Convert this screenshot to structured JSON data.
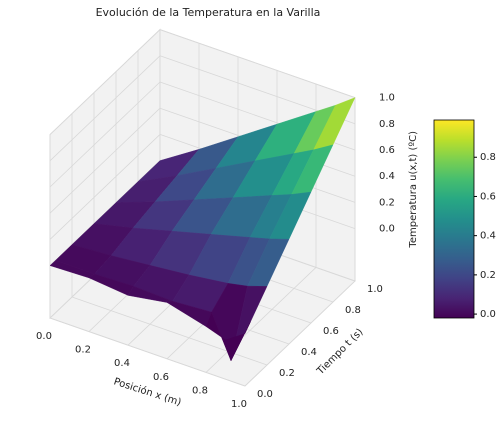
{
  "chart_data": {
    "type": "surface",
    "title": "Evolución de la Temperatura en la Varilla",
    "x_label": "Posición x (m)",
    "t_label": "Tiempo t (s)",
    "z_label": "Temperatura u(x,t) (ºC)",
    "x": [
      0,
      0.2,
      0.4,
      0.6,
      0.8,
      0.9,
      1.0
    ],
    "t": [
      0,
      0.05,
      0.2,
      0.4,
      0.6,
      0.8,
      1.0
    ],
    "z": [
      [
        0,
        0.01,
        -0.02,
        0.03,
        -0.05,
        -0.1,
        0
      ],
      [
        0,
        0,
        0.01,
        0,
        0.02,
        -0.3,
        0.05
      ],
      [
        0,
        0.02,
        0.05,
        0.08,
        0.12,
        0.15,
        0.2
      ],
      [
        0,
        0.07,
        0.15,
        0.23,
        0.31,
        0.35,
        0.4
      ],
      [
        0,
        0.11,
        0.23,
        0.35,
        0.47,
        0.53,
        0.6
      ],
      [
        0,
        0.15,
        0.31,
        0.47,
        0.63,
        0.71,
        0.8
      ],
      [
        0,
        0.19,
        0.39,
        0.59,
        0.79,
        0.89,
        1.0
      ]
    ],
    "xlim": [
      0,
      1.0
    ],
    "tlim": [
      0,
      1.0
    ],
    "zlim": [
      -0.4,
      1.0
    ],
    "xticks": [
      {
        "value": 0,
        "label": "0.0"
      },
      {
        "value": 0.2,
        "label": "0.2"
      },
      {
        "value": 0.4,
        "label": "0.4"
      },
      {
        "value": 0.6,
        "label": "0.6"
      },
      {
        "value": 0.8,
        "label": "0.8"
      },
      {
        "value": 1,
        "label": "1.0"
      }
    ],
    "tticks": [
      {
        "value": 0,
        "label": "0.0"
      },
      {
        "value": 0.2,
        "label": "0.2"
      },
      {
        "value": 0.4,
        "label": "0.4"
      },
      {
        "value": 0.6,
        "label": "0.6"
      },
      {
        "value": 0.8,
        "label": "0.8"
      },
      {
        "value": 1,
        "label": "1.0"
      }
    ],
    "zticks": [
      {
        "value": 0,
        "label": "0.0"
      },
      {
        "value": 0.2,
        "label": "0.2"
      },
      {
        "value": 0.4,
        "label": "0.4"
      },
      {
        "value": 0.6,
        "label": "0.6"
      },
      {
        "value": 0.8,
        "label": "0.8"
      },
      {
        "value": 1,
        "label": "1.0"
      }
    ],
    "colormap": "viridis",
    "clim": [
      -0.02,
      0.99
    ],
    "cticks": [
      {
        "value": 0,
        "label": "0.0"
      },
      {
        "value": 0.2,
        "label": "0.2"
      },
      {
        "value": 0.4,
        "label": "0.4"
      },
      {
        "value": 0.6,
        "label": "0.6"
      },
      {
        "value": 0.8,
        "label": "0.8"
      }
    ],
    "grid": true
  }
}
